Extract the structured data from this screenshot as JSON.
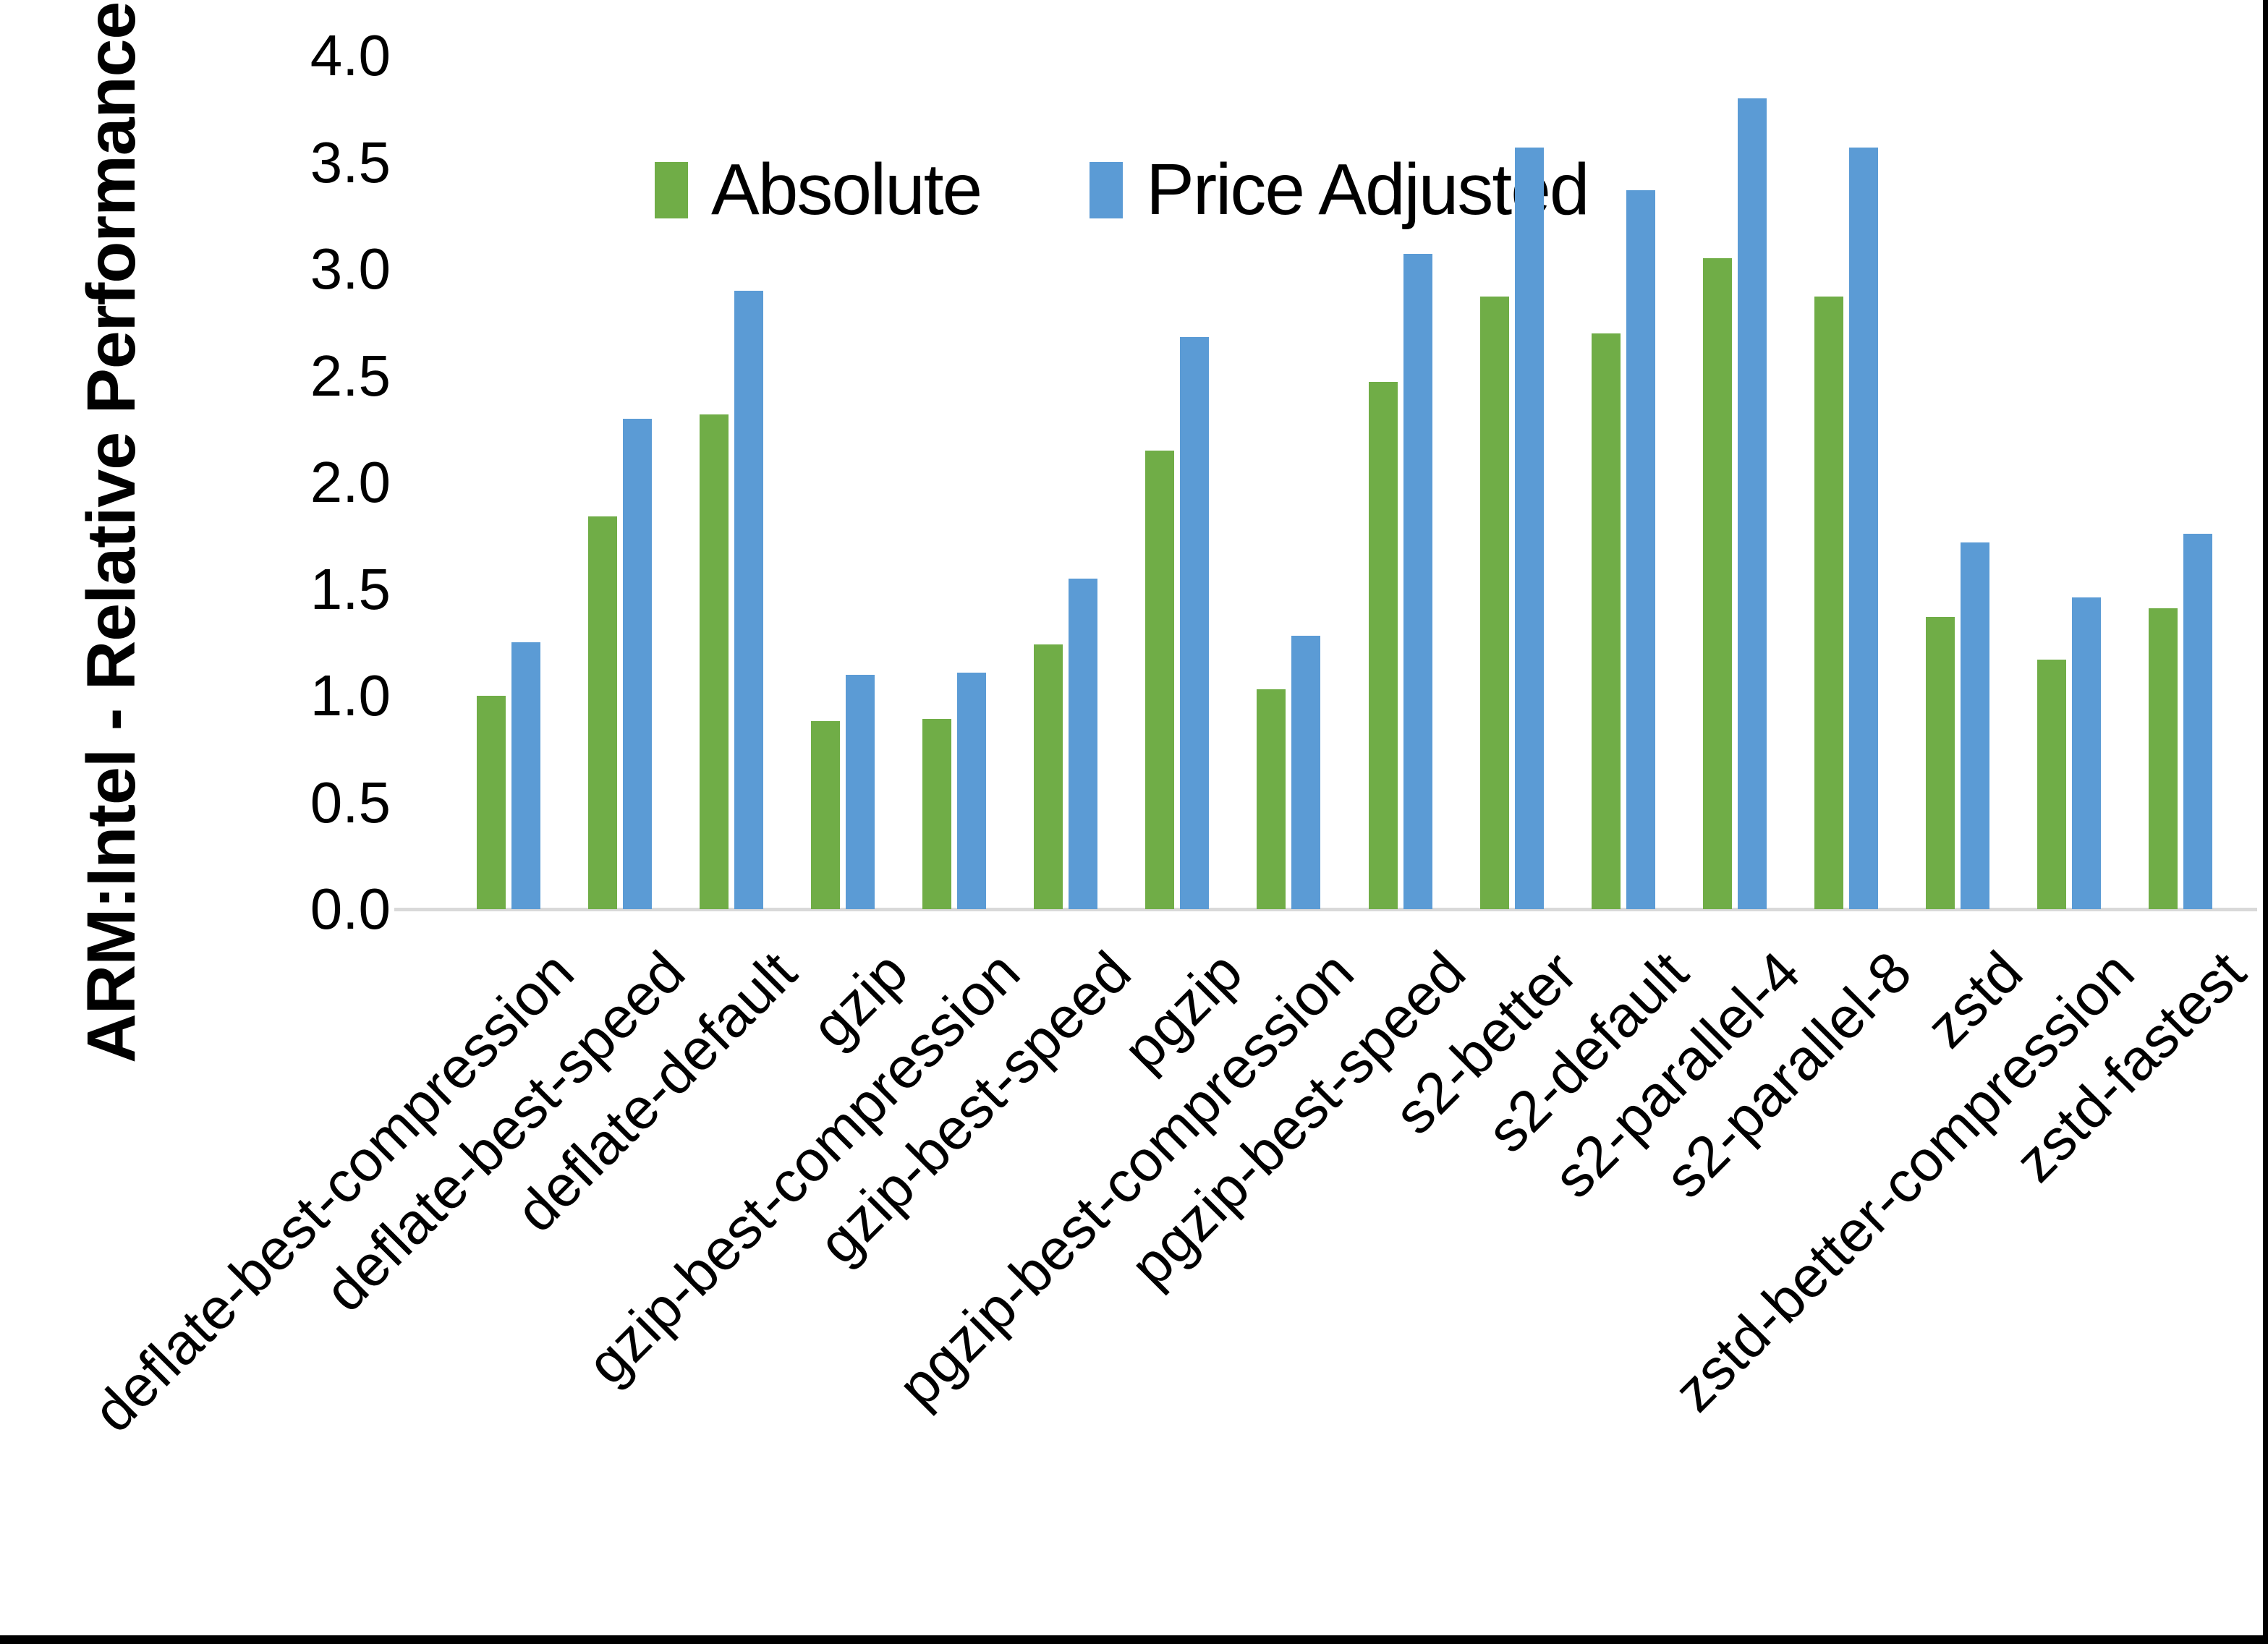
{
  "colors": {
    "background": "#ffffff",
    "axis_line": "#d9d9d9",
    "frame": "#000000"
  },
  "chart_data": {
    "type": "bar",
    "title": "",
    "xlabel": "",
    "ylabel": "ARM:Intel - Relative Performance",
    "ylim": [
      0,
      4.0
    ],
    "ytick_interval": 0.5,
    "yticks": [
      "4.0",
      "3.5",
      "3.0",
      "2.5",
      "2.0",
      "1.5",
      "1.0",
      "0.5",
      "0.0"
    ],
    "grid": false,
    "legend_position": "top-center",
    "categories": [
      "deflate-best-compression",
      "deflate-best-speed",
      "deflate-default",
      "gzip",
      "gzip-best-compression",
      "gzip-best-speed",
      "pgzip",
      "pgzip-best-compression",
      "pgzip-best-speed",
      "s2-better",
      "s2-default",
      "s2-parallel-4",
      "s2-parallel-8",
      "zstd",
      "zstd-better-compression",
      "zstd-fastest"
    ],
    "series": [
      {
        "name": "Absolute",
        "color": "#70AD47",
        "values": [
          1.0,
          1.84,
          2.32,
          0.88,
          0.89,
          1.24,
          2.15,
          1.03,
          2.47,
          2.87,
          2.7,
          3.05,
          2.87,
          1.37,
          1.17,
          1.41
        ]
      },
      {
        "name": "Price Adjusted",
        "color": "#5B9BD5",
        "values": [
          1.25,
          2.3,
          2.9,
          1.1,
          1.11,
          1.55,
          2.68,
          1.28,
          3.07,
          3.57,
          3.37,
          3.8,
          3.57,
          1.72,
          1.46,
          1.76
        ]
      }
    ]
  }
}
